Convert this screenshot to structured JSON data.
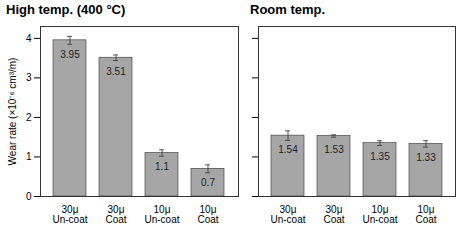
{
  "chart_data": [
    {
      "type": "bar",
      "title": "High temp. (400 °C)",
      "y_label": "Wear rate (×10⁻⁶ cm³/m)",
      "categories": [
        "30μ\nUn-coat",
        "30μ\nCoat",
        "10μ\nUn-coat",
        "10μ\nCoat"
      ],
      "values": [
        3.95,
        3.51,
        1.1,
        0.7
      ],
      "errors": [
        0.1,
        0.07,
        0.08,
        0.1
      ],
      "color": "#a6a6a6",
      "ylim": [
        0,
        4.3
      ],
      "yticks": [
        0,
        1,
        2,
        3,
        4
      ],
      "data_labels": true
    },
    {
      "type": "bar",
      "title": "Room temp.",
      "categories": [
        "30μ\nUn-coat",
        "30μ\nCoat",
        "10μ\nUn-coat",
        "10μ\nCoat"
      ],
      "values": [
        1.54,
        1.53,
        1.35,
        1.33
      ],
      "errors": [
        0.12,
        0.03,
        0.06,
        0.08
      ],
      "color": "#a6a6a6",
      "ylim": [
        0,
        4.3
      ],
      "yticks": [
        0,
        1,
        2,
        3,
        4
      ],
      "data_labels": true,
      "tick_labels": "x"
    }
  ]
}
